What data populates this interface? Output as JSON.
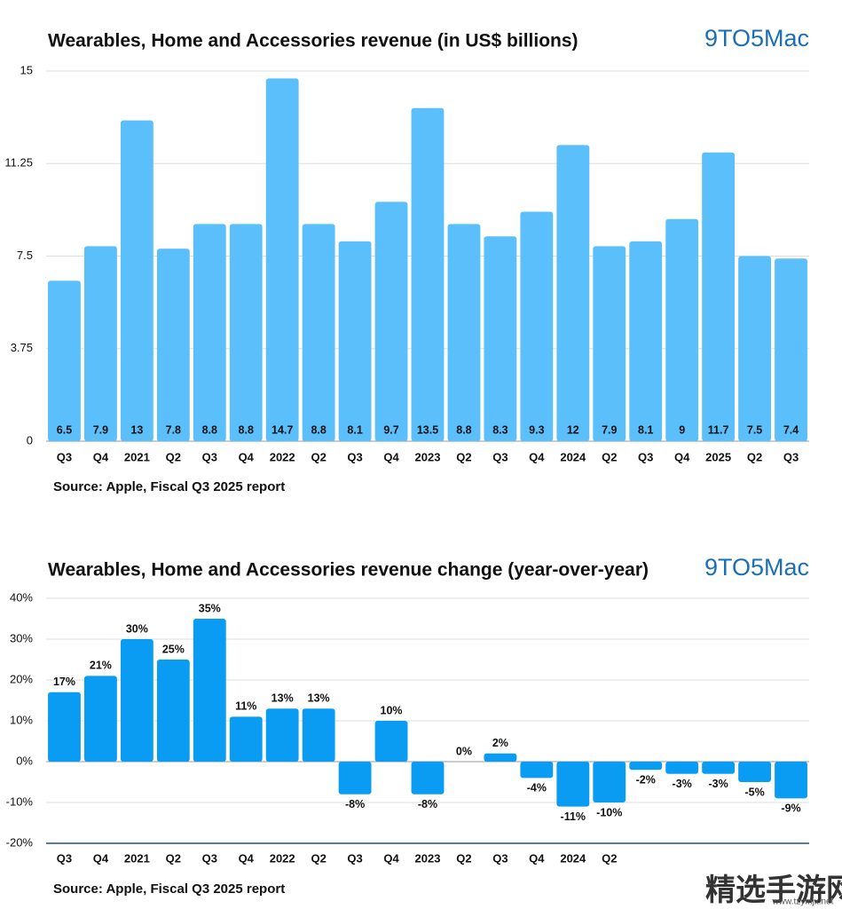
{
  "chart_data": [
    {
      "type": "bar",
      "title": "Wearables, Home and Accessories revenue (in US$ billions)",
      "logo": "9TO5Mac",
      "categories": [
        "Q3",
        "Q4",
        "2021",
        "Q2",
        "Q3",
        "Q4",
        "2022",
        "Q2",
        "Q3",
        "Q4",
        "2023",
        "Q2",
        "Q3",
        "Q4",
        "2024",
        "Q2",
        "Q3",
        "Q4",
        "2025",
        "Q2",
        "Q3"
      ],
      "values": [
        6.5,
        7.9,
        13,
        7.8,
        8.8,
        8.8,
        14.7,
        8.8,
        8.1,
        9.7,
        13.5,
        8.8,
        8.3,
        9.3,
        12,
        7.9,
        8.1,
        9,
        11.7,
        7.5,
        7.4
      ],
      "color": "#5bbffb",
      "ylim": [
        0,
        15
      ],
      "yticks": [
        0,
        3.75,
        7.5,
        11.25,
        15
      ],
      "grid": true,
      "source": "Source: Apple, Fiscal Q3 2025 report"
    },
    {
      "type": "bar",
      "title": "Wearables, Home and Accessories revenue change (year-over-year)",
      "logo": "9TO5Mac",
      "categories": [
        "Q3",
        "Q4",
        "2021",
        "Q2",
        "Q3",
        "Q4",
        "2022",
        "Q2",
        "Q3",
        "Q4",
        "2023",
        "Q2",
        "Q3",
        "Q4",
        "2024",
        "Q2",
        null,
        null,
        null,
        null,
        null
      ],
      "values": [
        17,
        21,
        30,
        25,
        35,
        11,
        13,
        13,
        -8,
        10,
        -8,
        0,
        2,
        -4,
        -11,
        -10,
        -2,
        -3,
        -3,
        -5,
        -9
      ],
      "value_labels": [
        "17%",
        "21%",
        "30%",
        "25%",
        "35%",
        "11%",
        "13%",
        "13%",
        "-8%",
        "10%",
        "-8%",
        "0%",
        "2%",
        "-4%",
        "-11%",
        "-10%",
        "-2%",
        "-3%",
        "-3%",
        "-5%",
        "-9%"
      ],
      "color": "#0a9cf2",
      "ylim": [
        -20,
        40
      ],
      "yticks": [
        {
          "value": -20,
          "label": "-20%"
        },
        {
          "value": -10,
          "label": "-10%"
        },
        {
          "value": 0,
          "label": "0%"
        },
        {
          "value": 10,
          "label": "10%"
        },
        {
          "value": 20,
          "label": "20%"
        },
        {
          "value": 30,
          "label": "30%"
        },
        {
          "value": 40,
          "label": "40%"
        }
      ],
      "grid": true,
      "source": "Source: Apple, Fiscal Q3 2025 report"
    }
  ],
  "watermark": {
    "title": "精选手游网",
    "url": "www.tzymjx.net"
  }
}
